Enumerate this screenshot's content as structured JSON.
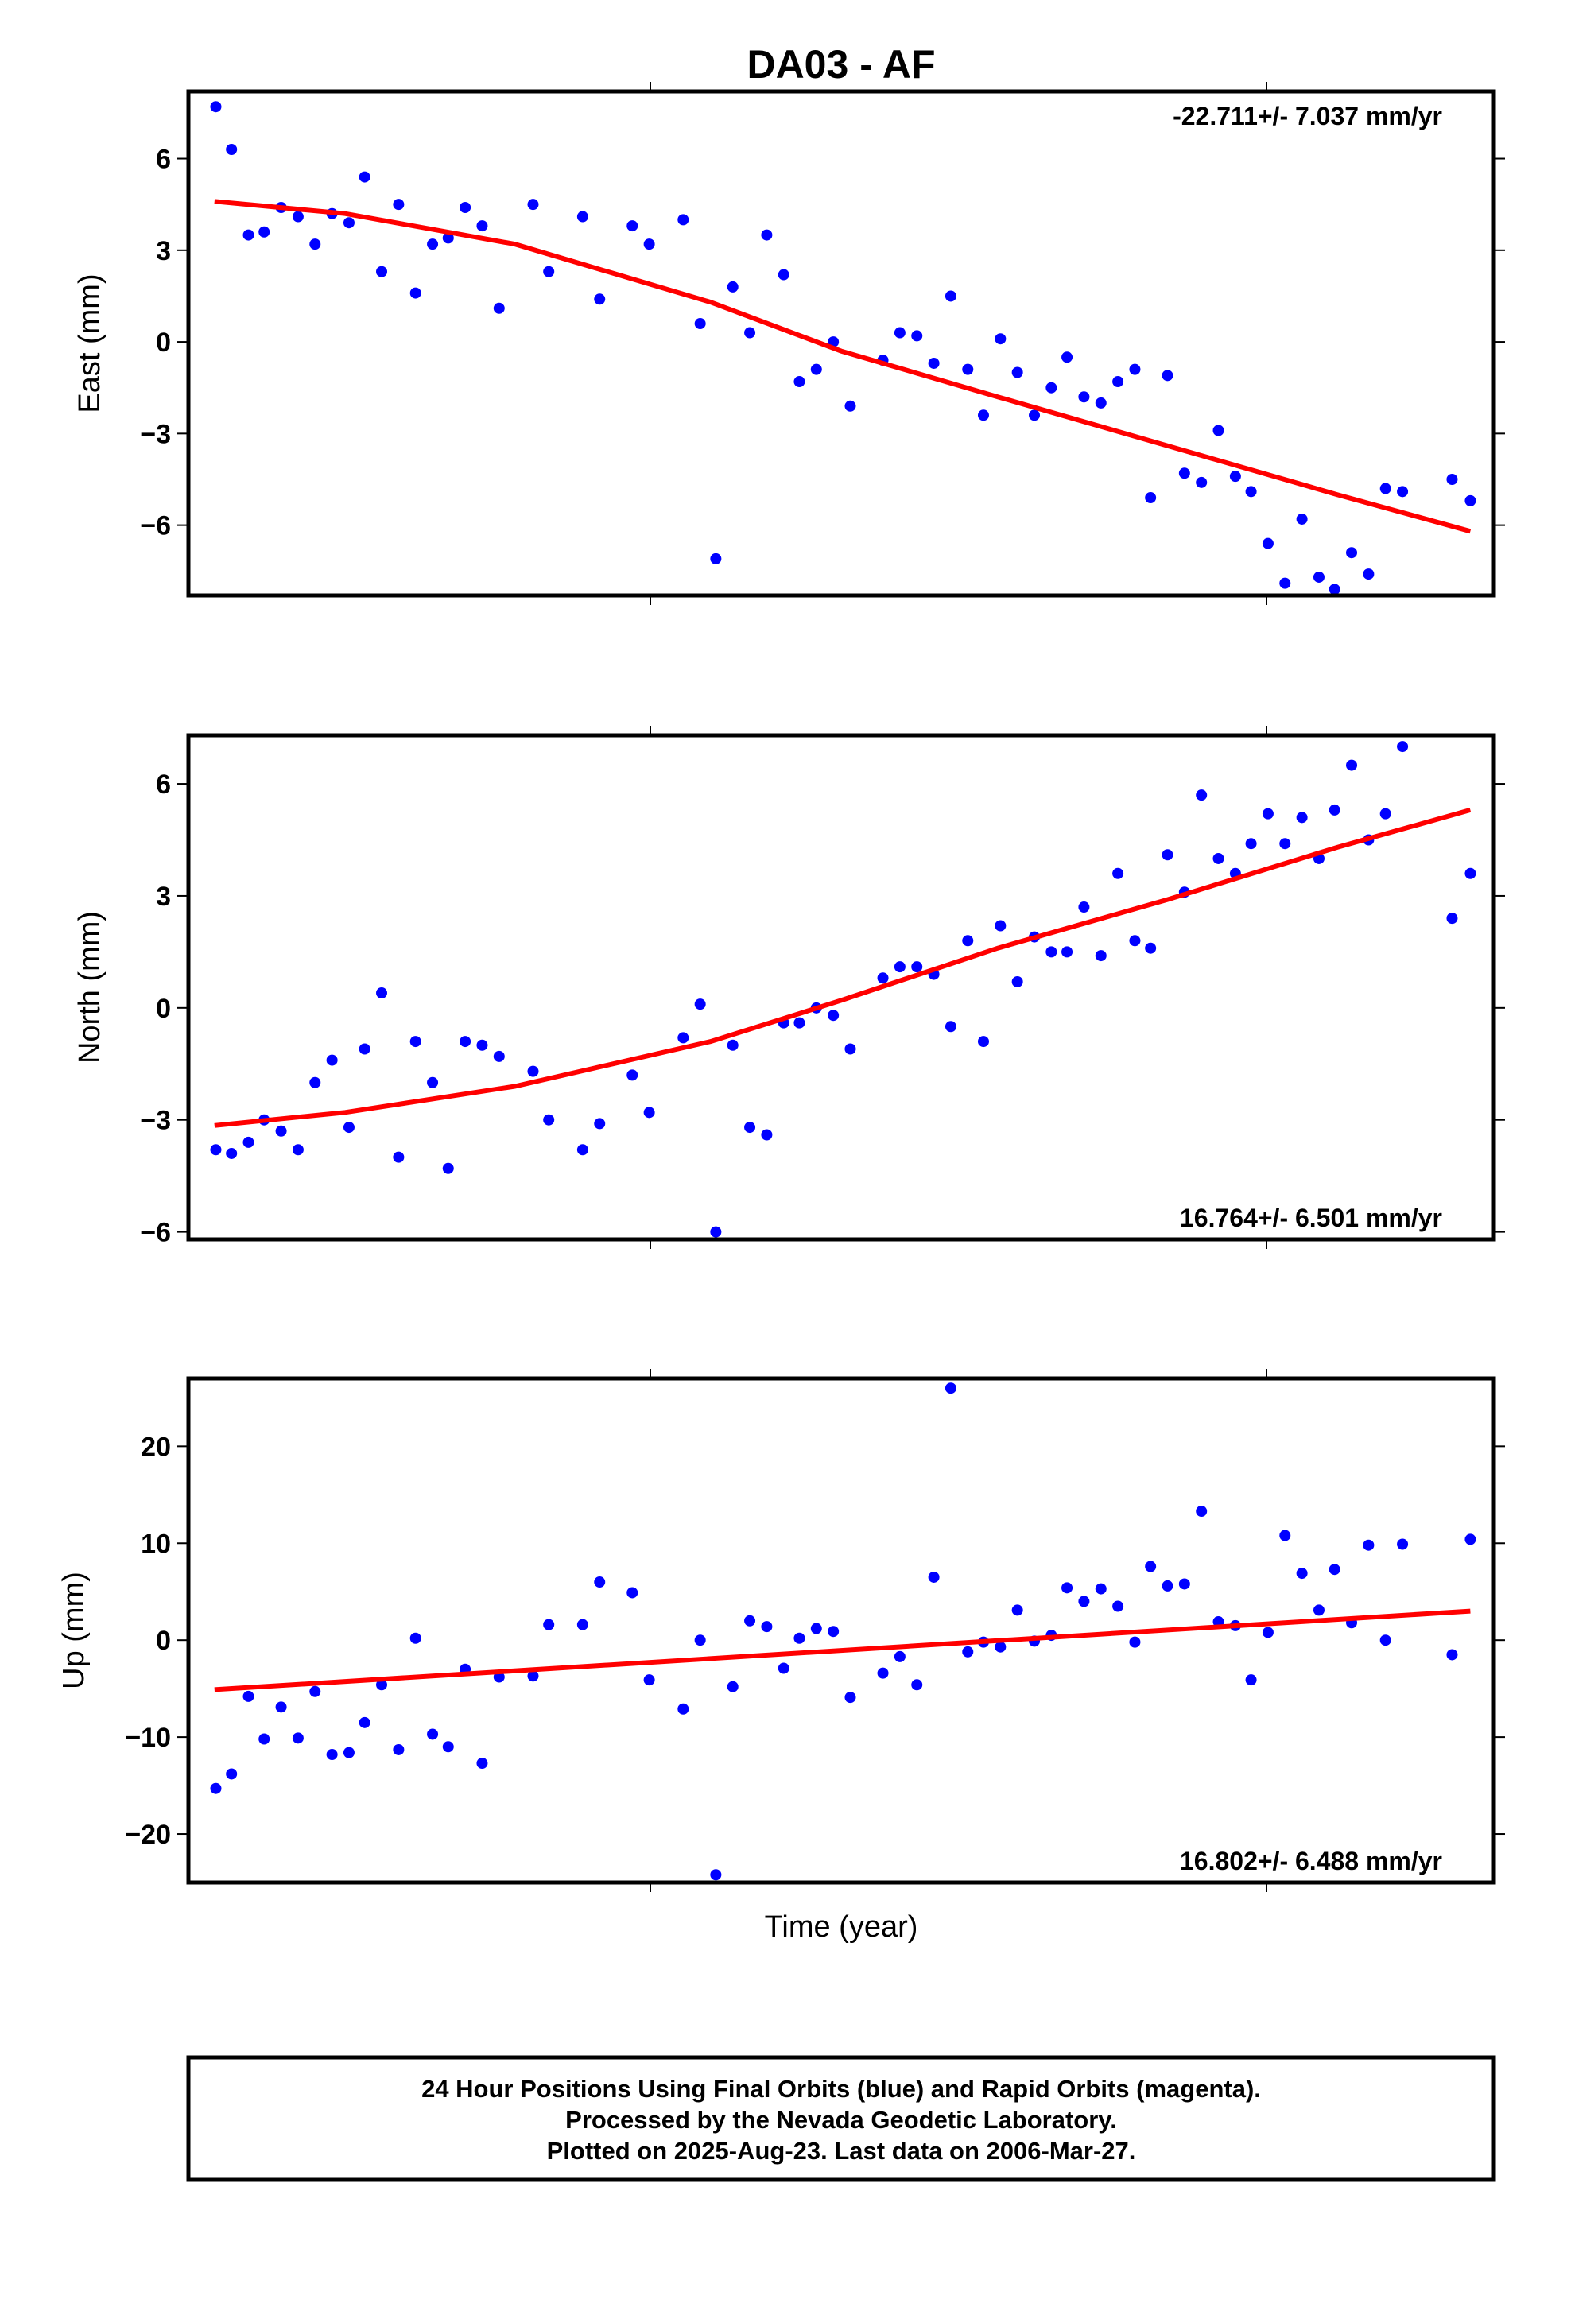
{
  "title": "DA03 - AF",
  "xlabel": "Time (year)",
  "footer": {
    "line1": "24 Hour Positions Using Final Orbits (blue) and Rapid Orbits (magenta).",
    "line2": "Processed by the Nevada Geodetic Laboratory.",
    "line3": "Plotted on 2025-Aug-23. Last data on 2006-Mar-27."
  },
  "colors": {
    "points": "#0000ff",
    "trend": "#ff0000"
  },
  "chart_data": [
    {
      "type": "scatter",
      "ylabel": "East (mm)",
      "rate": "-22.711+/- 7.037 mm/yr",
      "rate_position": "top-right",
      "ylim": [
        -8.3,
        8.2
      ],
      "yticks": [
        -6,
        -3,
        0,
        3,
        6
      ],
      "ytick_labels": [
        "−6",
        "−3",
        "0",
        "3",
        "6"
      ],
      "xlim": [
        0,
        1
      ],
      "series": [
        {
          "points": [
            [
              0.021,
              7.7
            ],
            [
              0.033,
              6.3
            ],
            [
              0.046,
              3.5
            ],
            [
              0.058,
              3.6
            ],
            [
              0.071,
              4.4
            ],
            [
              0.084,
              4.1
            ],
            [
              0.097,
              3.2
            ],
            [
              0.11,
              4.2
            ],
            [
              0.123,
              3.9
            ],
            [
              0.135,
              5.4
            ],
            [
              0.148,
              2.3
            ],
            [
              0.161,
              4.5
            ],
            [
              0.174,
              1.6
            ],
            [
              0.187,
              3.2
            ],
            [
              0.199,
              3.4
            ],
            [
              0.212,
              4.4
            ],
            [
              0.225,
              3.8
            ],
            [
              0.238,
              1.1
            ],
            [
              0.264,
              4.5
            ],
            [
              0.276,
              2.3
            ],
            [
              0.302,
              4.1
            ],
            [
              0.315,
              1.4
            ],
            [
              0.34,
              3.8
            ],
            [
              0.353,
              3.2
            ],
            [
              0.379,
              4.0
            ],
            [
              0.392,
              0.6
            ],
            [
              0.404,
              -7.1
            ],
            [
              0.417,
              1.8
            ],
            [
              0.43,
              0.3
            ],
            [
              0.443,
              3.5
            ],
            [
              0.456,
              2.2
            ],
            [
              0.468,
              -1.3
            ],
            [
              0.481,
              -0.9
            ],
            [
              0.494,
              0.0
            ],
            [
              0.507,
              -2.1
            ],
            [
              0.532,
              -0.6
            ],
            [
              0.545,
              0.3
            ],
            [
              0.558,
              0.2
            ],
            [
              0.571,
              -0.7
            ],
            [
              0.584,
              1.5
            ],
            [
              0.597,
              -0.9
            ],
            [
              0.609,
              -2.4
            ],
            [
              0.622,
              0.1
            ],
            [
              0.635,
              -1.0
            ],
            [
              0.648,
              -2.4
            ],
            [
              0.661,
              -1.5
            ],
            [
              0.673,
              -0.5
            ],
            [
              0.686,
              -1.8
            ],
            [
              0.699,
              -2.0
            ],
            [
              0.712,
              -1.3
            ],
            [
              0.725,
              -0.9
            ],
            [
              0.737,
              -5.1
            ],
            [
              0.75,
              -1.1
            ],
            [
              0.763,
              -4.3
            ],
            [
              0.776,
              -4.6
            ],
            [
              0.789,
              -2.9
            ],
            [
              0.802,
              -4.4
            ],
            [
              0.814,
              -4.9
            ],
            [
              0.827,
              -6.6
            ],
            [
              0.84,
              -7.9
            ],
            [
              0.853,
              -5.8
            ],
            [
              0.866,
              -7.7
            ],
            [
              0.878,
              -8.1
            ],
            [
              0.891,
              -6.9
            ],
            [
              0.904,
              -7.6
            ],
            [
              0.917,
              -4.8
            ],
            [
              0.93,
              -4.9
            ],
            [
              0.968,
              -4.5
            ],
            [
              0.982,
              -5.2
            ]
          ]
        }
      ],
      "trend": [
        [
          0.02,
          4.6
        ],
        [
          0.12,
          4.2
        ],
        [
          0.25,
          3.2
        ],
        [
          0.4,
          1.3
        ],
        [
          0.5,
          -0.3
        ],
        [
          0.62,
          -1.8
        ],
        [
          0.75,
          -3.4
        ],
        [
          0.88,
          -5.0
        ],
        [
          0.982,
          -6.2
        ]
      ]
    },
    {
      "type": "scatter",
      "ylabel": "North (mm)",
      "rate": "16.764+/- 6.501 mm/yr",
      "rate_position": "bottom-right",
      "ylim": [
        -6.2,
        7.3
      ],
      "yticks": [
        -6,
        -3,
        0,
        3,
        6
      ],
      "ytick_labels": [
        "−6",
        "−3",
        "0",
        "3",
        "6"
      ],
      "xlim": [
        0,
        1
      ],
      "series": [
        {
          "points": [
            [
              0.021,
              -3.8
            ],
            [
              0.033,
              -3.9
            ],
            [
              0.046,
              -3.6
            ],
            [
              0.058,
              -3.0
            ],
            [
              0.071,
              -3.3
            ],
            [
              0.084,
              -3.8
            ],
            [
              0.097,
              -2.0
            ],
            [
              0.11,
              -1.4
            ],
            [
              0.123,
              -3.2
            ],
            [
              0.135,
              -1.1
            ],
            [
              0.148,
              0.4
            ],
            [
              0.161,
              -4.0
            ],
            [
              0.174,
              -0.9
            ],
            [
              0.187,
              -2.0
            ],
            [
              0.199,
              -4.3
            ],
            [
              0.212,
              -0.9
            ],
            [
              0.225,
              -1.0
            ],
            [
              0.238,
              -1.3
            ],
            [
              0.264,
              -1.7
            ],
            [
              0.276,
              -3.0
            ],
            [
              0.302,
              -3.8
            ],
            [
              0.315,
              -3.1
            ],
            [
              0.34,
              -1.8
            ],
            [
              0.353,
              -2.8
            ],
            [
              0.379,
              -0.8
            ],
            [
              0.392,
              0.1
            ],
            [
              0.404,
              -6.0
            ],
            [
              0.417,
              -1.0
            ],
            [
              0.43,
              -3.2
            ],
            [
              0.443,
              -3.4
            ],
            [
              0.456,
              -0.4
            ],
            [
              0.468,
              -0.4
            ],
            [
              0.481,
              0.0
            ],
            [
              0.494,
              -0.2
            ],
            [
              0.507,
              -1.1
            ],
            [
              0.532,
              0.8
            ],
            [
              0.545,
              1.1
            ],
            [
              0.558,
              1.1
            ],
            [
              0.571,
              0.9
            ],
            [
              0.584,
              -0.5
            ],
            [
              0.597,
              1.8
            ],
            [
              0.609,
              -0.9
            ],
            [
              0.622,
              2.2
            ],
            [
              0.635,
              0.7
            ],
            [
              0.648,
              1.9
            ],
            [
              0.661,
              1.5
            ],
            [
              0.673,
              1.5
            ],
            [
              0.686,
              2.7
            ],
            [
              0.699,
              1.4
            ],
            [
              0.712,
              3.6
            ],
            [
              0.725,
              1.8
            ],
            [
              0.737,
              1.6
            ],
            [
              0.75,
              4.1
            ],
            [
              0.763,
              3.1
            ],
            [
              0.776,
              5.7
            ],
            [
              0.789,
              4.0
            ],
            [
              0.802,
              3.6
            ],
            [
              0.814,
              4.4
            ],
            [
              0.827,
              5.2
            ],
            [
              0.84,
              4.4
            ],
            [
              0.853,
              5.1
            ],
            [
              0.866,
              4.0
            ],
            [
              0.878,
              5.3
            ],
            [
              0.891,
              6.5
            ],
            [
              0.904,
              4.5
            ],
            [
              0.917,
              5.2
            ],
            [
              0.93,
              7.0
            ],
            [
              0.968,
              2.4
            ],
            [
              0.982,
              3.6
            ]
          ]
        }
      ],
      "trend": [
        [
          0.02,
          -3.15
        ],
        [
          0.12,
          -2.8
        ],
        [
          0.25,
          -2.1
        ],
        [
          0.4,
          -0.9
        ],
        [
          0.5,
          0.2
        ],
        [
          0.62,
          1.6
        ],
        [
          0.75,
          2.9
        ],
        [
          0.88,
          4.3
        ],
        [
          0.982,
          5.3
        ]
      ]
    },
    {
      "type": "scatter",
      "ylabel": "Up (mm)",
      "rate": "16.802+/- 6.488 mm/yr",
      "rate_position": "bottom-right",
      "ylim": [
        -25,
        27
      ],
      "yticks": [
        -20,
        -10,
        0,
        10,
        20
      ],
      "ytick_labels": [
        "−20",
        "−10",
        "0",
        "10",
        "20"
      ],
      "xlim": [
        0,
        1
      ],
      "series": [
        {
          "points": [
            [
              0.021,
              -15.3
            ],
            [
              0.033,
              -13.8
            ],
            [
              0.046,
              -5.8
            ],
            [
              0.058,
              -10.2
            ],
            [
              0.071,
              -6.9
            ],
            [
              0.084,
              -10.1
            ],
            [
              0.097,
              -5.3
            ],
            [
              0.11,
              -11.8
            ],
            [
              0.123,
              -11.6
            ],
            [
              0.135,
              -8.5
            ],
            [
              0.148,
              -4.6
            ],
            [
              0.161,
              -11.3
            ],
            [
              0.174,
              0.2
            ],
            [
              0.187,
              -9.7
            ],
            [
              0.199,
              -11.0
            ],
            [
              0.212,
              -3.0
            ],
            [
              0.225,
              -12.7
            ],
            [
              0.238,
              -3.8
            ],
            [
              0.264,
              -3.7
            ],
            [
              0.276,
              1.6
            ],
            [
              0.302,
              1.6
            ],
            [
              0.315,
              6.0
            ],
            [
              0.34,
              4.9
            ],
            [
              0.353,
              -4.1
            ],
            [
              0.379,
              -7.1
            ],
            [
              0.392,
              0.0
            ],
            [
              0.404,
              -24.2
            ],
            [
              0.417,
              -4.8
            ],
            [
              0.43,
              2.0
            ],
            [
              0.443,
              1.4
            ],
            [
              0.456,
              -2.9
            ],
            [
              0.468,
              0.2
            ],
            [
              0.481,
              1.2
            ],
            [
              0.494,
              0.9
            ],
            [
              0.507,
              -5.9
            ],
            [
              0.532,
              -3.4
            ],
            [
              0.545,
              -1.7
            ],
            [
              0.558,
              -4.6
            ],
            [
              0.571,
              6.5
            ],
            [
              0.584,
              26.0
            ],
            [
              0.597,
              -1.2
            ],
            [
              0.609,
              -0.2
            ],
            [
              0.622,
              -0.7
            ],
            [
              0.635,
              3.1
            ],
            [
              0.648,
              -0.1
            ],
            [
              0.661,
              0.5
            ],
            [
              0.673,
              5.4
            ],
            [
              0.686,
              4.0
            ],
            [
              0.699,
              5.3
            ],
            [
              0.712,
              3.5
            ],
            [
              0.725,
              -0.2
            ],
            [
              0.737,
              7.6
            ],
            [
              0.75,
              5.6
            ],
            [
              0.763,
              5.8
            ],
            [
              0.776,
              13.3
            ],
            [
              0.789,
              1.9
            ],
            [
              0.802,
              1.5
            ],
            [
              0.814,
              -4.1
            ],
            [
              0.827,
              0.8
            ],
            [
              0.84,
              10.8
            ],
            [
              0.853,
              6.9
            ],
            [
              0.866,
              3.1
            ],
            [
              0.878,
              7.3
            ],
            [
              0.891,
              1.8
            ],
            [
              0.904,
              9.8
            ],
            [
              0.917,
              0.0
            ],
            [
              0.93,
              9.9
            ],
            [
              0.968,
              -1.5
            ],
            [
              0.982,
              10.4
            ]
          ]
        }
      ],
      "trend": [
        [
          0.02,
          -5.1
        ],
        [
          0.982,
          3.0
        ]
      ]
    }
  ]
}
